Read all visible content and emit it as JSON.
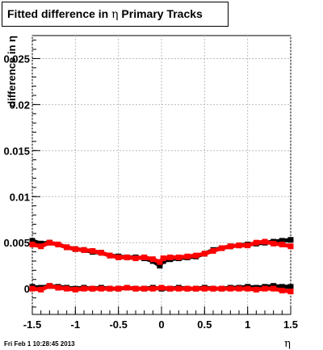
{
  "title_parts": [
    "Fitted difference in ",
    "η",
    " Primary Tracks"
  ],
  "timestamp": "Fri Feb  1 10:28:45 2013",
  "chart_data": {
    "type": "scatter",
    "title": "Fitted difference in η Primary Tracks",
    "xlabel": "η",
    "ylabel": "difference in η",
    "xlim": [
      -1.5,
      1.5
    ],
    "ylim": [
      -0.0028,
      0.0275
    ],
    "x_ticks": [
      -1.5,
      -1,
      -0.5,
      0,
      0.5,
      1,
      1.5
    ],
    "x_tick_labels": [
      "-1.5",
      "-1",
      "-0.5",
      "0",
      "0.5",
      "1",
      "1.5"
    ],
    "y_ticks": [
      0,
      0.005,
      0.01,
      0.015,
      0.02,
      0.025
    ],
    "y_tick_labels": [
      "0",
      "0.005",
      "0.01",
      "0.015",
      "0.02",
      "0.025"
    ],
    "grid": true,
    "colors": {
      "series_black": "#000000",
      "series_red": "#ff0000",
      "grid": "#bbbbbb"
    },
    "series": [
      {
        "color": "#000000",
        "x": [
          -1.5,
          -1.4,
          -1.3,
          -1.2,
          -1.1,
          -1.0,
          -0.9,
          -0.8,
          -0.7,
          -0.6,
          -0.5,
          -0.4,
          -0.3,
          -0.2,
          -0.1,
          -0.02,
          0.02,
          0.1,
          0.2,
          0.3,
          0.4,
          0.5,
          0.6,
          0.7,
          0.8,
          0.9,
          1.0,
          1.1,
          1.2,
          1.3,
          1.4,
          1.5
        ],
        "y": [
          0.0052,
          0.0049,
          0.005,
          0.0048,
          0.0045,
          0.0043,
          0.0042,
          0.004,
          0.0039,
          0.0036,
          0.0035,
          0.0034,
          0.0034,
          0.0033,
          0.003,
          0.0025,
          0.003,
          0.0032,
          0.0033,
          0.0034,
          0.0035,
          0.0038,
          0.0042,
          0.0044,
          0.0046,
          0.0047,
          0.0048,
          0.0049,
          0.005,
          0.0051,
          0.0052,
          0.0053
        ]
      },
      {
        "color": "#ff0000",
        "x": [
          -1.5,
          -1.4,
          -1.3,
          -1.2,
          -1.1,
          -1.0,
          -0.9,
          -0.8,
          -0.7,
          -0.6,
          -0.5,
          -0.4,
          -0.3,
          -0.2,
          -0.1,
          -0.02,
          0.02,
          0.1,
          0.2,
          0.3,
          0.4,
          0.5,
          0.6,
          0.7,
          0.8,
          0.9,
          1.0,
          1.1,
          1.2,
          1.3,
          1.4,
          1.5
        ],
        "y": [
          0.0048,
          0.0046,
          0.005,
          0.0048,
          0.0045,
          0.0043,
          0.0042,
          0.0041,
          0.0039,
          0.0036,
          0.0034,
          0.0034,
          0.0033,
          0.0034,
          0.0032,
          0.0029,
          0.0033,
          0.0034,
          0.0034,
          0.0035,
          0.0036,
          0.0038,
          0.0041,
          0.0044,
          0.0046,
          0.0047,
          0.0047,
          0.005,
          0.0051,
          0.0049,
          0.0048,
          0.0046
        ]
      },
      {
        "color": "#000000",
        "x": [
          -1.5,
          -1.4,
          -1.3,
          -1.2,
          -1.1,
          -1.0,
          -0.9,
          -0.8,
          -0.7,
          -0.6,
          -0.5,
          -0.4,
          -0.3,
          -0.2,
          -0.1,
          0.0,
          0.1,
          0.2,
          0.3,
          0.4,
          0.5,
          0.6,
          0.7,
          0.8,
          0.9,
          1.0,
          1.1,
          1.2,
          1.3,
          1.4,
          1.5
        ],
        "y": [
          0.0002,
          0.0001,
          0.0003,
          0.0002,
          0.0001,
          0.0,
          0.0001,
          0.0,
          0.0001,
          0.0,
          0.0,
          0.0001,
          0.0,
          0.0,
          0.0001,
          0.0,
          0.0,
          0.0001,
          0.0,
          0.0,
          0.0001,
          0.0,
          0.0,
          0.0001,
          0.0001,
          0.0002,
          0.0001,
          0.0002,
          0.0003,
          0.0002,
          0.0002
        ]
      },
      {
        "color": "#ff0000",
        "x": [
          -1.5,
          -1.4,
          -1.3,
          -1.2,
          -1.1,
          -1.0,
          -0.9,
          -0.8,
          -0.7,
          -0.6,
          -0.5,
          -0.4,
          -0.3,
          -0.2,
          -0.1,
          0.0,
          0.1,
          0.2,
          0.3,
          0.4,
          0.5,
          0.6,
          0.7,
          0.8,
          0.9,
          1.0,
          1.1,
          1.2,
          1.3,
          1.4,
          1.5
        ],
        "y": [
          0.0,
          -0.0001,
          0.0003,
          0.0001,
          0.0,
          -0.0001,
          0.0,
          0.0,
          0.0,
          0.0,
          0.0,
          0.0001,
          0.0,
          0.0,
          0.0,
          0.0001,
          0.0,
          0.0,
          0.0,
          0.0,
          0.0,
          0.0,
          0.0,
          0.0,
          0.0,
          0.0,
          -0.0001,
          0.0,
          0.0,
          -0.0002,
          -0.0003
        ]
      }
    ]
  }
}
